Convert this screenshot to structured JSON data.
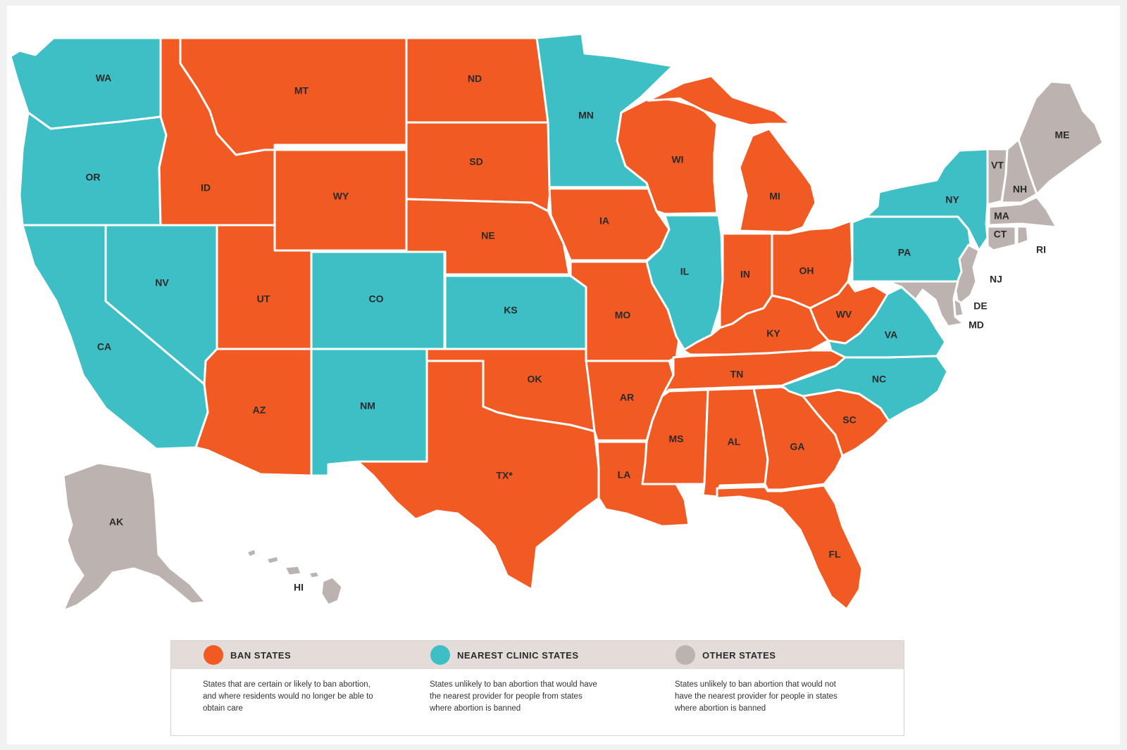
{
  "colors": {
    "ban": "#f15a22",
    "nearest_clinic": "#3dbfc5",
    "other": "#bcb3b0",
    "border": "#ffffff"
  },
  "states": [
    {
      "code": "WA",
      "category": "nearest_clinic"
    },
    {
      "code": "OR",
      "category": "nearest_clinic"
    },
    {
      "code": "CA",
      "category": "nearest_clinic"
    },
    {
      "code": "NV",
      "category": "nearest_clinic"
    },
    {
      "code": "ID",
      "category": "ban"
    },
    {
      "code": "MT",
      "category": "ban"
    },
    {
      "code": "WY",
      "category": "ban"
    },
    {
      "code": "UT",
      "category": "ban"
    },
    {
      "code": "AZ",
      "category": "ban"
    },
    {
      "code": "CO",
      "category": "nearest_clinic"
    },
    {
      "code": "NM",
      "category": "nearest_clinic"
    },
    {
      "code": "ND",
      "category": "ban"
    },
    {
      "code": "SD",
      "category": "ban"
    },
    {
      "code": "NE",
      "category": "ban"
    },
    {
      "code": "KS",
      "category": "nearest_clinic"
    },
    {
      "code": "OK",
      "category": "ban"
    },
    {
      "code": "TX*",
      "category": "ban"
    },
    {
      "code": "MN",
      "category": "nearest_clinic"
    },
    {
      "code": "IA",
      "category": "ban"
    },
    {
      "code": "MO",
      "category": "ban"
    },
    {
      "code": "AR",
      "category": "ban"
    },
    {
      "code": "LA",
      "category": "ban"
    },
    {
      "code": "WI",
      "category": "ban"
    },
    {
      "code": "IL",
      "category": "nearest_clinic"
    },
    {
      "code": "MI",
      "category": "ban"
    },
    {
      "code": "IN",
      "category": "ban"
    },
    {
      "code": "OH",
      "category": "ban"
    },
    {
      "code": "KY",
      "category": "ban"
    },
    {
      "code": "TN",
      "category": "ban"
    },
    {
      "code": "MS",
      "category": "ban"
    },
    {
      "code": "AL",
      "category": "ban"
    },
    {
      "code": "GA",
      "category": "ban"
    },
    {
      "code": "FL",
      "category": "ban"
    },
    {
      "code": "SC",
      "category": "ban"
    },
    {
      "code": "NC",
      "category": "nearest_clinic"
    },
    {
      "code": "VA",
      "category": "nearest_clinic"
    },
    {
      "code": "WV",
      "category": "ban"
    },
    {
      "code": "PA",
      "category": "nearest_clinic"
    },
    {
      "code": "NY",
      "category": "nearest_clinic"
    },
    {
      "code": "VT",
      "category": "other"
    },
    {
      "code": "NH",
      "category": "other"
    },
    {
      "code": "ME",
      "category": "other"
    },
    {
      "code": "MA",
      "category": "other"
    },
    {
      "code": "CT",
      "category": "other"
    },
    {
      "code": "RI",
      "category": "other"
    },
    {
      "code": "NJ",
      "category": "other"
    },
    {
      "code": "DE",
      "category": "other"
    },
    {
      "code": "MD",
      "category": "other"
    },
    {
      "code": "AK",
      "category": "other"
    },
    {
      "code": "HI",
      "category": "other"
    }
  ],
  "legend": {
    "ban": {
      "title": "BAN STATES",
      "description": "States that are certain or likely to ban abortion, and where residents would no longer be able to obtain care"
    },
    "nearest_clinic": {
      "title": "NEAREST CLINIC STATES",
      "description": "States unlikely to ban abortion that would have the nearest provider for people from states where abortion is banned"
    },
    "other": {
      "title": "OTHER STATES",
      "description": "States unlikely to ban abortion that would not have the nearest provider for people in states where abortion is banned"
    }
  }
}
